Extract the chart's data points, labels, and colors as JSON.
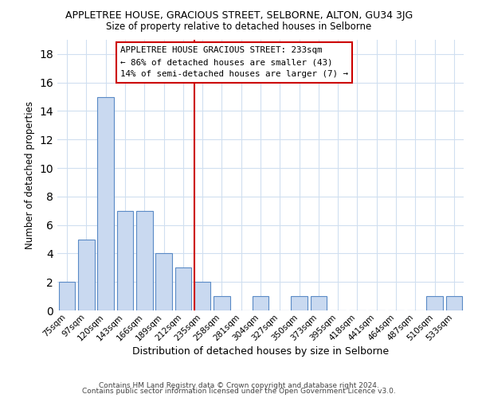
{
  "title": "APPLETREE HOUSE, GRACIOUS STREET, SELBORNE, ALTON, GU34 3JG",
  "subtitle": "Size of property relative to detached houses in Selborne",
  "xlabel": "Distribution of detached houses by size in Selborne",
  "ylabel": "Number of detached properties",
  "bar_labels": [
    "75sqm",
    "97sqm",
    "120sqm",
    "143sqm",
    "166sqm",
    "189sqm",
    "212sqm",
    "235sqm",
    "258sqm",
    "281sqm",
    "304sqm",
    "327sqm",
    "350sqm",
    "373sqm",
    "395sqm",
    "418sqm",
    "441sqm",
    "464sqm",
    "487sqm",
    "510sqm",
    "533sqm"
  ],
  "bar_values": [
    2,
    5,
    15,
    7,
    7,
    4,
    3,
    2,
    1,
    0,
    1,
    0,
    1,
    1,
    0,
    0,
    0,
    0,
    0,
    1,
    1
  ],
  "bar_color": "#c9d9f0",
  "bar_edge_color": "#5a8ac6",
  "vline_index": 7,
  "vline_color": "#cc0000",
  "annotation_title": "APPLETREE HOUSE GRACIOUS STREET: 233sqm",
  "annotation_line1": "← 86% of detached houses are smaller (43)",
  "annotation_line2": "14% of semi-detached houses are larger (7) →",
  "annotation_box_color": "#ffffff",
  "annotation_box_edge_color": "#cc0000",
  "ylim": [
    0,
    19
  ],
  "yticks": [
    0,
    2,
    4,
    6,
    8,
    10,
    12,
    14,
    16,
    18
  ],
  "footer1": "Contains HM Land Registry data © Crown copyright and database right 2024.",
  "footer2": "Contains public sector information licensed under the Open Government Licence v3.0.",
  "background_color": "#ffffff",
  "grid_color": "#d0dff0"
}
